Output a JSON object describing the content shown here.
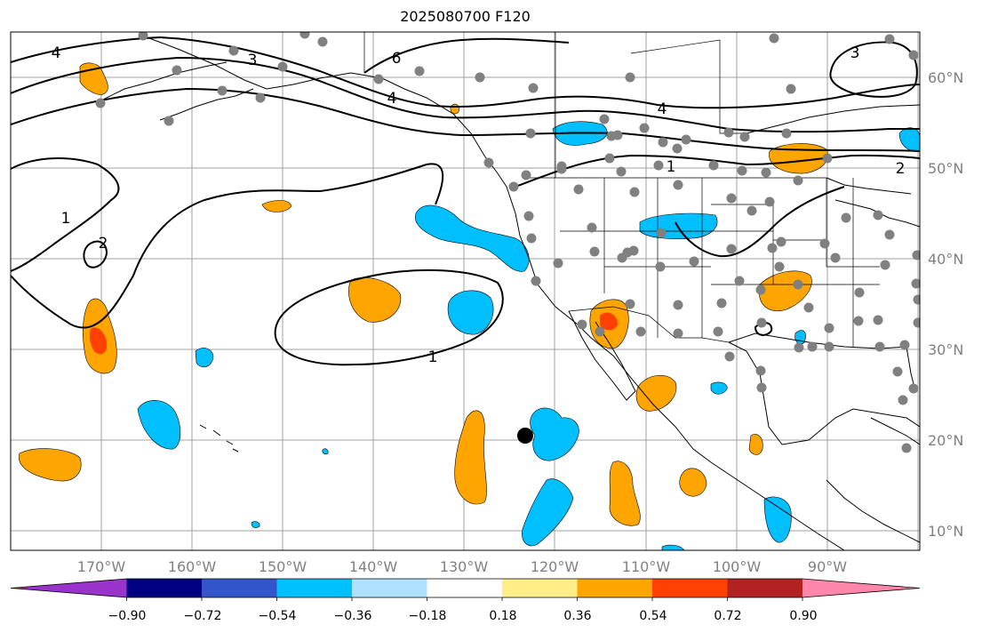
{
  "title": "2025080700 F120",
  "lat_labels": [
    "60°N",
    "50°N",
    "40°N",
    "30°N",
    "20°N",
    "10°N"
  ],
  "lon_labels": [
    "170°W",
    "160°W",
    "150°W",
    "140°W",
    "130°W",
    "120°W",
    "110°W",
    "100°W",
    "90°W"
  ],
  "colorbar": {
    "ticks": [
      "−0.90",
      "−0.72",
      "−0.54",
      "−0.36",
      "−0.18",
      "0.18",
      "0.36",
      "0.54",
      "0.72",
      "0.90"
    ],
    "colors": [
      "#9933cc",
      "#000080",
      "#3355cc",
      "#00bfff",
      "#b0e0ff",
      "#ffffff",
      "#ffee88",
      "#ffa500",
      "#ff4000",
      "#b22222",
      "#ff88aa"
    ]
  },
  "contour_labels": [
    "4",
    "3",
    "6",
    "4",
    "4",
    "3",
    "1",
    "2",
    "1",
    "2",
    "1"
  ],
  "colors": {
    "contour": "#000000",
    "station": "#808080",
    "grid": "#a0a0a0",
    "coast": "#000000"
  }
}
